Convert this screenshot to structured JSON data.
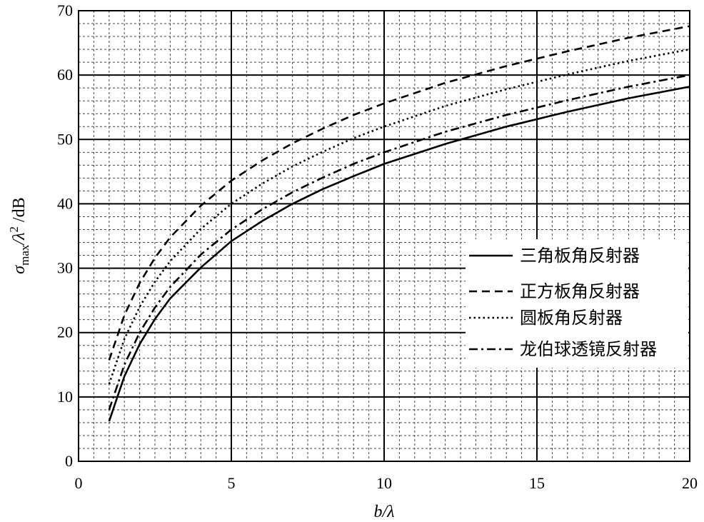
{
  "chart_data": {
    "type": "line",
    "xlabel": "b/λ",
    "ylabel": "σmax/λ² /dB",
    "xlim": [
      0,
      20
    ],
    "ylim": [
      0,
      70
    ],
    "x_ticks": [
      0,
      5,
      10,
      15,
      20
    ],
    "y_ticks": [
      0,
      10,
      20,
      30,
      40,
      50,
      60,
      70
    ],
    "grid": true,
    "legend_position": "right",
    "series": [
      {
        "name": "三角板角反射器",
        "line_style": "solid",
        "x": [
          1,
          1.5,
          2,
          2.5,
          3,
          4,
          5,
          6,
          7,
          8,
          9,
          10,
          12,
          14,
          16,
          18,
          20
        ],
        "y": [
          6.2,
          13.2,
          18.2,
          22.1,
          25.3,
          30.1,
          34.2,
          37.3,
          40.0,
          42.3,
          44.3,
          46.2,
          49.3,
          52.0,
          54.3,
          56.4,
          58.2
        ]
      },
      {
        "name": "正方板角反射器",
        "line_style": "dashed",
        "x": [
          1,
          1.5,
          2,
          2.5,
          3,
          4,
          5,
          6,
          7,
          8,
          9,
          10,
          12,
          14,
          16,
          18,
          20
        ],
        "y": [
          15.7,
          22.7,
          27.7,
          31.6,
          34.8,
          39.7,
          43.6,
          46.7,
          49.4,
          51.7,
          53.8,
          55.6,
          58.8,
          61.4,
          63.7,
          65.8,
          67.6
        ]
      },
      {
        "name": "圆板角反射器",
        "line_style": "dotted",
        "x": [
          1,
          1.5,
          2,
          2.5,
          3,
          4,
          5,
          6,
          7,
          8,
          9,
          10,
          12,
          14,
          16,
          18,
          20
        ],
        "y": [
          12.0,
          19.0,
          24.0,
          27.9,
          31.1,
          36.1,
          40.0,
          43.1,
          45.8,
          48.1,
          50.2,
          52.0,
          55.2,
          57.8,
          60.1,
          62.2,
          64.0
        ]
      },
      {
        "name": "龙伯球透镜反射器",
        "line_style": "dash-dot",
        "x": [
          1,
          1.5,
          2,
          2.5,
          3,
          4,
          5,
          6,
          7,
          8,
          9,
          10,
          12,
          14,
          16,
          18,
          20
        ],
        "y": [
          8.0,
          15.0,
          20.0,
          23.9,
          27.1,
          32.1,
          36.0,
          39.1,
          41.8,
          44.1,
          46.2,
          48.0,
          51.2,
          53.8,
          56.1,
          58.2,
          60.0
        ]
      }
    ]
  }
}
